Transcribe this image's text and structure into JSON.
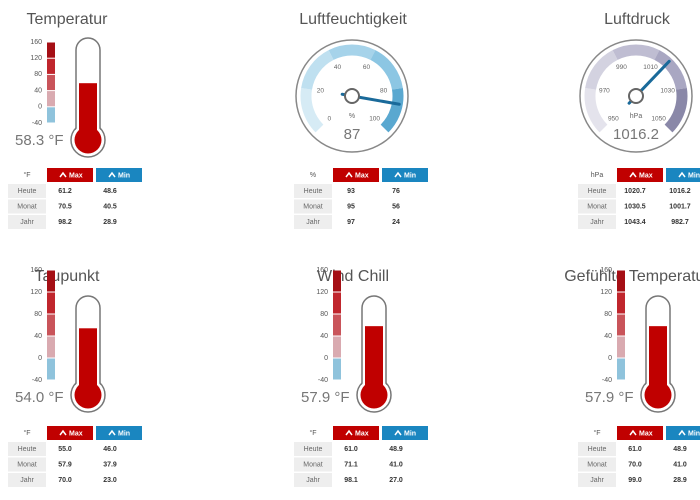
{
  "widgets": [
    {
      "kind": "thermometer",
      "title": "Temperatur",
      "ticks": [
        160,
        120,
        80,
        40,
        0,
        -40
      ],
      "value": 58.3,
      "value_label": "58.3 °F",
      "table": {
        "header": [
          "°F",
          "Max",
          "Min"
        ],
        "rows": [
          [
            "Heute",
            "61.2",
            "48.6"
          ],
          [
            "Monat",
            "70.5",
            "40.5"
          ],
          [
            "Jahr",
            "98.2",
            "28.9"
          ]
        ]
      }
    },
    {
      "kind": "gauge",
      "title": "Luftfeuchtigkeit",
      "ticks": [
        0,
        20,
        40,
        60,
        80,
        100
      ],
      "unit": "%",
      "value": 87,
      "colors": [
        "#d6ebf5",
        "#bfe0f0",
        "#a6d3ea",
        "#8cc6e3",
        "#5aa8d0"
      ],
      "table": {
        "header": [
          "%",
          "Max",
          "Min"
        ],
        "rows": [
          [
            "Heute",
            "93",
            "76"
          ],
          [
            "Monat",
            "95",
            "56"
          ],
          [
            "Jahr",
            "97",
            "24"
          ]
        ]
      }
    },
    {
      "kind": "gauge",
      "title": "Luftdruck",
      "ticks": [
        950,
        970,
        990,
        1010,
        1030,
        1050
      ],
      "unit": "hPa",
      "value": 1016.2,
      "colors": [
        "#e4e3ec",
        "#d3d2e0",
        "#bfbdd2",
        "#a9a7c2",
        "#8a88a8"
      ],
      "table": {
        "header": [
          "hPa",
          "Max",
          "Min"
        ],
        "rows": [
          [
            "Heute",
            "1020.7",
            "1016.2"
          ],
          [
            "Monat",
            "1030.5",
            "1001.7"
          ],
          [
            "Jahr",
            "1043.4",
            "982.7"
          ]
        ]
      }
    },
    {
      "kind": "thermometer",
      "title": "Taupunkt",
      "ticks": [
        160,
        120,
        80,
        40,
        0,
        -40
      ],
      "value": 54.0,
      "value_label": "54.0 °F",
      "table": {
        "header": [
          "°F",
          "Max",
          "Min"
        ],
        "rows": [
          [
            "Heute",
            "55.0",
            "46.0"
          ],
          [
            "Monat",
            "57.9",
            "37.9"
          ],
          [
            "Jahr",
            "70.0",
            "23.0"
          ]
        ]
      }
    },
    {
      "kind": "thermometer",
      "title": "Wind Chill",
      "ticks": [
        160,
        120,
        80,
        40,
        0,
        -40
      ],
      "value": 57.9,
      "value_label": "57.9 °F",
      "table": {
        "header": [
          "°F",
          "Max",
          "Min"
        ],
        "rows": [
          [
            "Heute",
            "61.0",
            "48.9"
          ],
          [
            "Monat",
            "71.1",
            "41.0"
          ],
          [
            "Jahr",
            "98.1",
            "27.0"
          ]
        ]
      }
    },
    {
      "kind": "thermometer",
      "title": "Gefühlte Temperatur",
      "ticks": [
        160,
        120,
        80,
        40,
        0,
        -40
      ],
      "value": 57.9,
      "value_label": "57.9 °F",
      "table": {
        "header": [
          "°F",
          "Max",
          "Min"
        ],
        "rows": [
          [
            "Heute",
            "61.0",
            "48.9"
          ],
          [
            "Monat",
            "70.0",
            "41.0"
          ],
          [
            "Jahr",
            "99.0",
            "28.9"
          ]
        ]
      }
    }
  ]
}
